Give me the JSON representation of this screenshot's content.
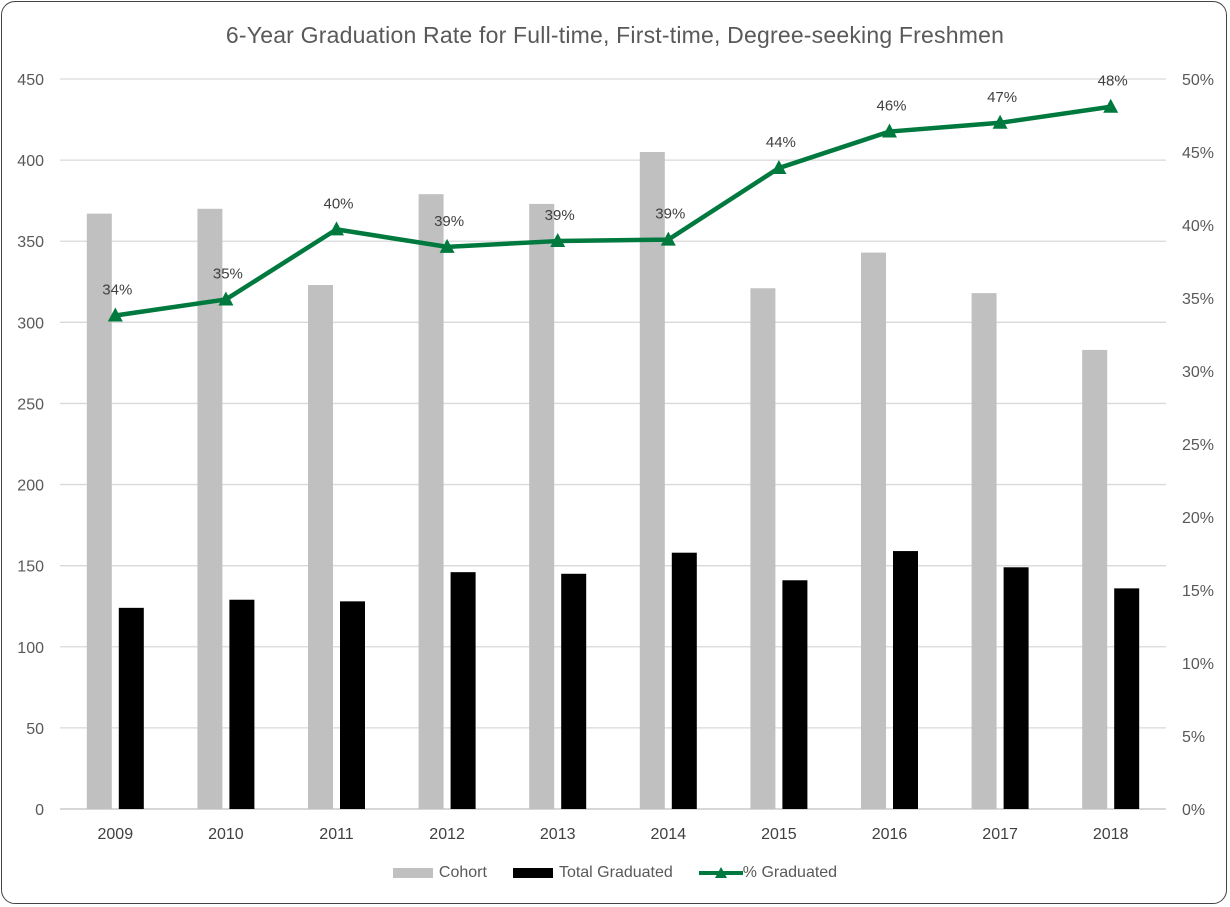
{
  "chart_data": {
    "type": "bar",
    "title": "6-Year Graduation Rate for Full-time, First-time, Degree-seeking Freshmen",
    "categories": [
      "2009",
      "2010",
      "2011",
      "2012",
      "2013",
      "2014",
      "2015",
      "2016",
      "2017",
      "2018"
    ],
    "series": [
      {
        "name": "Cohort",
        "type": "bar",
        "axis": "left",
        "color": "#c0c0c0",
        "values": [
          367,
          370,
          323,
          379,
          373,
          405,
          321,
          343,
          318,
          283
        ]
      },
      {
        "name": "Total Graduated",
        "type": "bar",
        "axis": "left",
        "color": "#000000",
        "values": [
          124,
          129,
          128,
          146,
          145,
          158,
          141,
          159,
          149,
          136
        ]
      },
      {
        "name": "% Graduated",
        "type": "line",
        "axis": "right",
        "color": "#00793f",
        "marker": "triangle",
        "values": [
          33.8,
          34.9,
          39.7,
          38.5,
          38.9,
          39.0,
          43.9,
          46.4,
          47.0,
          48.1
        ],
        "labels": [
          "34%",
          "35%",
          "40%",
          "39%",
          "39%",
          "39%",
          "44%",
          "46%",
          "47%",
          "48%"
        ]
      }
    ],
    "ylim_left": [
      0,
      450
    ],
    "yticks_left": [
      "0",
      "50",
      "100",
      "150",
      "200",
      "250",
      "300",
      "350",
      "400",
      "450"
    ],
    "ylim_right": [
      0,
      50
    ],
    "yticks_right": [
      "0%",
      "5%",
      "10%",
      "15%",
      "20%",
      "25%",
      "30%",
      "35%",
      "40%",
      "45%",
      "50%"
    ],
    "grid": true,
    "legend": "bottom-center"
  }
}
